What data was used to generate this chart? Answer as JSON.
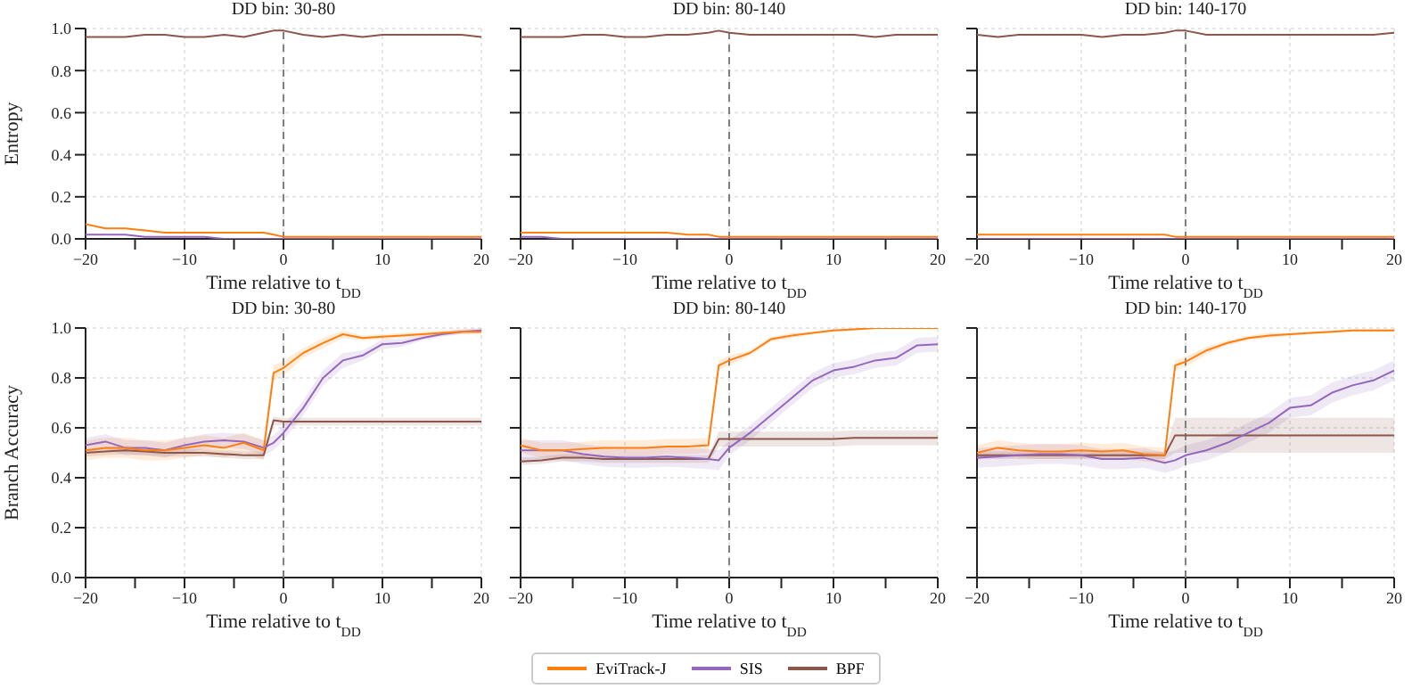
{
  "chart_data": [
    {
      "type": "line",
      "title": "DD bin: 30-80",
      "xlabel": "Time relative to t$_{DD}$",
      "ylabel": "Entropy",
      "legend": "bottom",
      "xlim": [
        -20,
        20
      ],
      "ylim": [
        0,
        1
      ],
      "xticks": [
        -20,
        {
          "value": -15,
          "label": null
        },
        -10,
        {
          "value": -5,
          "label": null
        },
        0,
        {
          "value": 5,
          "label": null
        },
        10,
        {
          "value": 15,
          "label": null
        },
        20
      ],
      "yticks": [
        {
          "value": 0,
          "label": "0.0"
        },
        {
          "value": 0.2,
          "label": "0.2"
        },
        {
          "value": 0.4,
          "label": "0.4"
        },
        {
          "value": 0.6,
          "label": "0.6"
        },
        {
          "value": 0.8,
          "label": "0.8"
        },
        {
          "value": 1,
          "label": "1.0"
        }
      ],
      "grid": true,
      "ref_lines": [
        {
          "axis": "x",
          "value": 0,
          "label": null,
          "color": "#808080",
          "line_style": "dashed"
        }
      ],
      "x": [
        -20,
        -18,
        -16,
        -14,
        -12,
        -10,
        -8,
        -6,
        -4,
        -2,
        -1,
        0,
        2,
        4,
        6,
        8,
        10,
        12,
        14,
        16,
        18,
        20
      ],
      "series": [
        {
          "name": "EviTrack-J",
          "color": "#ff7f0e",
          "values": [
            0.07,
            0.05,
            0.05,
            0.04,
            0.03,
            0.03,
            0.03,
            0.03,
            0.03,
            0.03,
            0.02,
            0.01,
            0.01,
            0.01,
            0.01,
            0.01,
            0.01,
            0.01,
            0.01,
            0.01,
            0.01,
            0.01
          ]
        },
        {
          "name": "SIS",
          "color": "#9467bd",
          "values": [
            0.02,
            0.02,
            0.02,
            0.01,
            0.01,
            0.01,
            0.01,
            0,
            0,
            0,
            0,
            0,
            0,
            0,
            0,
            0,
            0,
            0,
            0,
            0,
            0,
            0
          ]
        },
        {
          "name": "BPF",
          "color": "#8c564b",
          "values": [
            0.96,
            0.96,
            0.96,
            0.97,
            0.97,
            0.96,
            0.96,
            0.97,
            0.96,
            0.98,
            0.99,
            0.99,
            0.97,
            0.96,
            0.97,
            0.96,
            0.97,
            0.97,
            0.97,
            0.97,
            0.97,
            0.96
          ]
        }
      ]
    },
    {
      "type": "line",
      "title": "DD bin: 80-140",
      "xlabel": "Time relative to t$_{DD}$",
      "tick_labels": "x",
      "xlim": [
        -20,
        20
      ],
      "ylim": [
        0,
        1
      ],
      "xticks": [
        -20,
        {
          "value": -15,
          "label": null
        },
        -10,
        {
          "value": -5,
          "label": null
        },
        0,
        {
          "value": 5,
          "label": null
        },
        10,
        {
          "value": 15,
          "label": null
        },
        20
      ],
      "yticks": [
        {
          "value": 0,
          "label": null
        },
        {
          "value": 0.2,
          "label": null
        },
        {
          "value": 0.4,
          "label": null
        },
        {
          "value": 0.6,
          "label": null
        },
        {
          "value": 0.8,
          "label": null
        },
        {
          "value": 1,
          "label": null
        }
      ],
      "grid": true,
      "ref_lines": [
        {
          "axis": "x",
          "value": 0,
          "label": null,
          "color": "#808080",
          "line_style": "dashed"
        }
      ],
      "x": [
        -20,
        -18,
        -16,
        -14,
        -12,
        -10,
        -8,
        -6,
        -4,
        -2,
        -1,
        0,
        2,
        4,
        6,
        8,
        10,
        12,
        14,
        16,
        18,
        20
      ],
      "series": [
        {
          "color": "#ff7f0e",
          "values": [
            0.03,
            0.03,
            0.03,
            0.03,
            0.03,
            0.03,
            0.03,
            0.03,
            0.02,
            0.02,
            0.01,
            0.01,
            0.01,
            0.01,
            0.01,
            0.01,
            0.01,
            0.01,
            0.01,
            0.01,
            0.01,
            0.01
          ]
        },
        {
          "color": "#9467bd",
          "values": [
            0.01,
            0.01,
            0,
            0,
            0,
            0,
            0,
            0,
            0,
            0,
            0,
            0,
            0,
            0,
            0,
            0,
            0,
            0,
            0,
            0,
            0,
            0
          ]
        },
        {
          "color": "#8c564b",
          "values": [
            0.96,
            0.96,
            0.96,
            0.97,
            0.97,
            0.96,
            0.96,
            0.97,
            0.97,
            0.98,
            0.99,
            0.98,
            0.97,
            0.97,
            0.97,
            0.97,
            0.97,
            0.97,
            0.96,
            0.97,
            0.97,
            0.97
          ]
        }
      ]
    },
    {
      "type": "line",
      "title": "DD bin: 140-170",
      "xlabel": "Time relative to t$_{DD}$",
      "tick_labels": "x",
      "xlim": [
        -20,
        20
      ],
      "ylim": [
        0,
        1
      ],
      "xticks": [
        -20,
        {
          "value": -15,
          "label": null
        },
        -10,
        {
          "value": -5,
          "label": null
        },
        0,
        {
          "value": 5,
          "label": null
        },
        10,
        {
          "value": 15,
          "label": null
        },
        20
      ],
      "yticks": [
        {
          "value": 0,
          "label": null
        },
        {
          "value": 0.2,
          "label": null
        },
        {
          "value": 0.4,
          "label": null
        },
        {
          "value": 0.6,
          "label": null
        },
        {
          "value": 0.8,
          "label": null
        },
        {
          "value": 1,
          "label": null
        }
      ],
      "grid": true,
      "ref_lines": [
        {
          "axis": "x",
          "value": 0,
          "label": null,
          "color": "#808080",
          "line_style": "dashed"
        }
      ],
      "x": [
        -20,
        -18,
        -16,
        -14,
        -12,
        -10,
        -8,
        -6,
        -4,
        -2,
        -1,
        0,
        2,
        4,
        6,
        8,
        10,
        12,
        14,
        16,
        18,
        20
      ],
      "series": [
        {
          "color": "#ff7f0e",
          "values": [
            0.02,
            0.02,
            0.02,
            0.02,
            0.02,
            0.02,
            0.02,
            0.02,
            0.02,
            0.02,
            0.01,
            0.01,
            0.01,
            0.01,
            0.01,
            0.01,
            0.01,
            0.01,
            0.01,
            0.01,
            0.01,
            0.01
          ]
        },
        {
          "color": "#9467bd",
          "values": [
            0,
            0,
            0,
            0,
            0,
            0,
            0,
            0,
            0,
            0,
            0,
            0,
            0,
            0,
            0,
            0,
            0,
            0,
            0,
            0,
            0,
            0
          ]
        },
        {
          "color": "#8c564b",
          "values": [
            0.97,
            0.96,
            0.97,
            0.97,
            0.97,
            0.97,
            0.96,
            0.97,
            0.97,
            0.98,
            0.99,
            0.99,
            0.97,
            0.97,
            0.97,
            0.97,
            0.97,
            0.97,
            0.97,
            0.97,
            0.97,
            0.98
          ]
        }
      ]
    },
    {
      "type": "line",
      "title": "DD bin: 30-80",
      "xlabel": "Time relative to t$_{DD}$",
      "ylabel": "Branch Accuracy",
      "xlim": [
        -20,
        20
      ],
      "ylim": [
        0,
        1
      ],
      "xticks": [
        -20,
        {
          "value": -15,
          "label": null
        },
        -10,
        {
          "value": -5,
          "label": null
        },
        0,
        {
          "value": 5,
          "label": null
        },
        10,
        {
          "value": 15,
          "label": null
        },
        20
      ],
      "yticks": [
        {
          "value": 0,
          "label": "0.0"
        },
        {
          "value": 0.2,
          "label": "0.2"
        },
        {
          "value": 0.4,
          "label": "0.4"
        },
        {
          "value": 0.6,
          "label": "0.6"
        },
        {
          "value": 0.8,
          "label": "0.8"
        },
        {
          "value": 1,
          "label": "1.0"
        }
      ],
      "grid": true,
      "ref_lines": [
        {
          "axis": "x",
          "value": 0,
          "label": null,
          "color": "#808080",
          "line_style": "dashed"
        }
      ],
      "x": [
        -20,
        -18,
        -16,
        -14,
        -12,
        -10,
        -8,
        -6,
        -4,
        -2,
        -1,
        0,
        2,
        4,
        6,
        8,
        10,
        12,
        14,
        16,
        18,
        20
      ],
      "series": [
        {
          "color": "#ff7f0e",
          "values": [
            0.51,
            0.52,
            0.52,
            0.51,
            0.51,
            0.52,
            0.53,
            0.52,
            0.54,
            0.51,
            0.82,
            0.84,
            0.9,
            0.94,
            0.975,
            0.96,
            0.965,
            0.97,
            0.975,
            0.98,
            0.985,
            0.985
          ],
          "lower": [
            0.47,
            0.48,
            0.48,
            0.47,
            0.47,
            0.48,
            0.49,
            0.48,
            0.5,
            0.47,
            0.79,
            0.81,
            0.88,
            0.92,
            0.96,
            0.95,
            0.955,
            0.96,
            0.965,
            0.97,
            0.975,
            0.975
          ],
          "upper": [
            0.55,
            0.56,
            0.56,
            0.55,
            0.55,
            0.56,
            0.57,
            0.56,
            0.58,
            0.55,
            0.85,
            0.87,
            0.92,
            0.96,
            0.99,
            0.97,
            0.975,
            0.98,
            0.985,
            0.99,
            0.995,
            0.995
          ]
        },
        {
          "color": "#9467bd",
          "values": [
            0.53,
            0.545,
            0.52,
            0.52,
            0.51,
            0.53,
            0.545,
            0.55,
            0.545,
            0.52,
            0.54,
            0.58,
            0.68,
            0.8,
            0.87,
            0.89,
            0.935,
            0.94,
            0.96,
            0.975,
            0.985,
            0.99
          ],
          "lower": [
            0.5,
            0.515,
            0.49,
            0.49,
            0.48,
            0.5,
            0.515,
            0.52,
            0.515,
            0.49,
            0.51,
            0.55,
            0.65,
            0.77,
            0.84,
            0.87,
            0.915,
            0.925,
            0.95,
            0.965,
            0.975,
            0.98
          ],
          "upper": [
            0.56,
            0.575,
            0.55,
            0.55,
            0.54,
            0.56,
            0.575,
            0.58,
            0.575,
            0.55,
            0.57,
            0.61,
            0.71,
            0.83,
            0.9,
            0.91,
            0.955,
            0.955,
            0.97,
            0.985,
            0.995,
            1.0
          ]
        },
        {
          "color": "#8c564b",
          "values": [
            0.5,
            0.505,
            0.51,
            0.505,
            0.5,
            0.5,
            0.5,
            0.495,
            0.49,
            0.49,
            0.63,
            0.625,
            0.625,
            0.625,
            0.625,
            0.625,
            0.625,
            0.625,
            0.625,
            0.625,
            0.625,
            0.625
          ],
          "lower": [
            0.485,
            0.49,
            0.495,
            0.49,
            0.485,
            0.485,
            0.485,
            0.48,
            0.475,
            0.475,
            0.61,
            0.61,
            0.61,
            0.61,
            0.61,
            0.61,
            0.61,
            0.61,
            0.61,
            0.61,
            0.61,
            0.61
          ],
          "upper": [
            0.515,
            0.52,
            0.525,
            0.52,
            0.515,
            0.515,
            0.515,
            0.51,
            0.505,
            0.505,
            0.645,
            0.64,
            0.64,
            0.64,
            0.64,
            0.64,
            0.64,
            0.64,
            0.64,
            0.64,
            0.64,
            0.64
          ]
        }
      ]
    },
    {
      "type": "line",
      "title": "DD bin: 80-140",
      "xlabel": "Time relative to t$_{DD}$",
      "tick_labels": "x",
      "xlim": [
        -20,
        20
      ],
      "ylim": [
        0,
        1
      ],
      "xticks": [
        -20,
        {
          "value": -15,
          "label": null
        },
        -10,
        {
          "value": -5,
          "label": null
        },
        0,
        {
          "value": 5,
          "label": null
        },
        10,
        {
          "value": 15,
          "label": null
        },
        20
      ],
      "yticks": [
        {
          "value": 0,
          "label": null
        },
        {
          "value": 0.2,
          "label": null
        },
        {
          "value": 0.4,
          "label": null
        },
        {
          "value": 0.6,
          "label": null
        },
        {
          "value": 0.8,
          "label": null
        },
        {
          "value": 1,
          "label": null
        }
      ],
      "grid": true,
      "ref_lines": [
        {
          "axis": "x",
          "value": 0,
          "label": null,
          "color": "#808080",
          "line_style": "dashed"
        }
      ],
      "x": [
        -20,
        -18,
        -16,
        -14,
        -12,
        -10,
        -8,
        -6,
        -4,
        -2,
        -1,
        0,
        2,
        4,
        6,
        8,
        10,
        12,
        14,
        16,
        18,
        20
      ],
      "series": [
        {
          "color": "#ff7f0e",
          "values": [
            0.53,
            0.51,
            0.51,
            0.515,
            0.52,
            0.52,
            0.52,
            0.525,
            0.525,
            0.53,
            0.85,
            0.87,
            0.9,
            0.955,
            0.97,
            0.98,
            0.99,
            0.995,
            1.0,
            1.0,
            1.0,
            1.0
          ],
          "lower": [
            0.5,
            0.48,
            0.48,
            0.485,
            0.49,
            0.49,
            0.49,
            0.495,
            0.495,
            0.5,
            0.83,
            0.85,
            0.89,
            0.945,
            0.96,
            0.975,
            0.985,
            0.99,
            0.995,
            0.995,
            0.995,
            0.995
          ],
          "upper": [
            0.56,
            0.54,
            0.54,
            0.545,
            0.55,
            0.55,
            0.55,
            0.555,
            0.555,
            0.56,
            0.87,
            0.89,
            0.91,
            0.965,
            0.98,
            0.985,
            0.995,
            1.0,
            1.0,
            1.0,
            1.0,
            1.0
          ]
        },
        {
          "color": "#9467bd",
          "values": [
            0.51,
            0.51,
            0.51,
            0.495,
            0.485,
            0.48,
            0.48,
            0.485,
            0.48,
            0.475,
            0.47,
            0.52,
            0.58,
            0.65,
            0.72,
            0.79,
            0.83,
            0.845,
            0.87,
            0.88,
            0.93,
            0.935
          ],
          "lower": [
            0.47,
            0.47,
            0.47,
            0.455,
            0.445,
            0.44,
            0.44,
            0.445,
            0.44,
            0.435,
            0.43,
            0.49,
            0.55,
            0.62,
            0.69,
            0.76,
            0.8,
            0.815,
            0.84,
            0.85,
            0.9,
            0.905
          ],
          "upper": [
            0.55,
            0.55,
            0.55,
            0.535,
            0.525,
            0.52,
            0.52,
            0.525,
            0.52,
            0.515,
            0.51,
            0.55,
            0.61,
            0.68,
            0.75,
            0.82,
            0.86,
            0.875,
            0.9,
            0.91,
            0.96,
            0.965
          ]
        },
        {
          "color": "#8c564b",
          "values": [
            0.465,
            0.47,
            0.48,
            0.48,
            0.475,
            0.475,
            0.475,
            0.475,
            0.475,
            0.475,
            0.555,
            0.555,
            0.555,
            0.555,
            0.555,
            0.555,
            0.555,
            0.56,
            0.56,
            0.56,
            0.56,
            0.56
          ],
          "lower": [
            0.45,
            0.455,
            0.465,
            0.465,
            0.46,
            0.46,
            0.46,
            0.46,
            0.46,
            0.46,
            0.525,
            0.525,
            0.525,
            0.525,
            0.525,
            0.525,
            0.525,
            0.53,
            0.53,
            0.53,
            0.53,
            0.53
          ],
          "upper": [
            0.48,
            0.485,
            0.495,
            0.495,
            0.49,
            0.49,
            0.49,
            0.49,
            0.49,
            0.49,
            0.585,
            0.585,
            0.585,
            0.585,
            0.585,
            0.585,
            0.585,
            0.59,
            0.59,
            0.59,
            0.59,
            0.59
          ]
        }
      ]
    },
    {
      "type": "line",
      "title": "DD bin: 140-170",
      "xlabel": "Time relative to t$_{DD}$",
      "tick_labels": "x",
      "xlim": [
        -20,
        20
      ],
      "ylim": [
        0,
        1
      ],
      "xticks": [
        -20,
        {
          "value": -15,
          "label": null
        },
        -10,
        {
          "value": -5,
          "label": null
        },
        0,
        {
          "value": 5,
          "label": null
        },
        10,
        {
          "value": 15,
          "label": null
        },
        20
      ],
      "yticks": [
        {
          "value": 0,
          "label": null
        },
        {
          "value": 0.2,
          "label": null
        },
        {
          "value": 0.4,
          "label": null
        },
        {
          "value": 0.6,
          "label": null
        },
        {
          "value": 0.8,
          "label": null
        },
        {
          "value": 1,
          "label": null
        }
      ],
      "grid": true,
      "ref_lines": [
        {
          "axis": "x",
          "value": 0,
          "label": null,
          "color": "#808080",
          "line_style": "dashed"
        }
      ],
      "x": [
        -20,
        -18,
        -16,
        -14,
        -12,
        -10,
        -8,
        -6,
        -4,
        -2,
        -1,
        0,
        2,
        4,
        6,
        8,
        10,
        12,
        14,
        16,
        18,
        20
      ],
      "series": [
        {
          "color": "#ff7f0e",
          "values": [
            0.5,
            0.52,
            0.51,
            0.505,
            0.505,
            0.51,
            0.505,
            0.51,
            0.495,
            0.49,
            0.85,
            0.865,
            0.91,
            0.94,
            0.96,
            0.97,
            0.975,
            0.98,
            0.985,
            0.99,
            0.99,
            0.99
          ],
          "lower": [
            0.47,
            0.49,
            0.48,
            0.475,
            0.475,
            0.48,
            0.475,
            0.48,
            0.465,
            0.46,
            0.83,
            0.845,
            0.895,
            0.93,
            0.95,
            0.96,
            0.97,
            0.975,
            0.98,
            0.985,
            0.985,
            0.985
          ],
          "upper": [
            0.53,
            0.55,
            0.54,
            0.535,
            0.535,
            0.54,
            0.535,
            0.54,
            0.525,
            0.52,
            0.87,
            0.885,
            0.925,
            0.95,
            0.97,
            0.98,
            0.98,
            0.985,
            0.99,
            0.995,
            0.995,
            0.995
          ]
        },
        {
          "color": "#9467bd",
          "values": [
            0.48,
            0.485,
            0.49,
            0.495,
            0.495,
            0.49,
            0.475,
            0.475,
            0.48,
            0.46,
            0.47,
            0.49,
            0.51,
            0.54,
            0.58,
            0.62,
            0.68,
            0.69,
            0.74,
            0.77,
            0.79,
            0.83
          ],
          "lower": [
            0.44,
            0.445,
            0.45,
            0.455,
            0.455,
            0.45,
            0.435,
            0.435,
            0.44,
            0.42,
            0.43,
            0.45,
            0.47,
            0.5,
            0.54,
            0.58,
            0.64,
            0.65,
            0.7,
            0.73,
            0.75,
            0.79
          ],
          "upper": [
            0.52,
            0.525,
            0.53,
            0.535,
            0.535,
            0.53,
            0.515,
            0.515,
            0.52,
            0.5,
            0.51,
            0.53,
            0.55,
            0.58,
            0.62,
            0.66,
            0.72,
            0.73,
            0.78,
            0.81,
            0.83,
            0.87
          ]
        },
        {
          "color": "#8c564b",
          "values": [
            0.49,
            0.49,
            0.49,
            0.49,
            0.49,
            0.49,
            0.49,
            0.49,
            0.49,
            0.49,
            0.57,
            0.57,
            0.57,
            0.57,
            0.57,
            0.57,
            0.57,
            0.57,
            0.57,
            0.57,
            0.57,
            0.57
          ],
          "lower": [
            0.475,
            0.475,
            0.475,
            0.475,
            0.475,
            0.475,
            0.475,
            0.475,
            0.475,
            0.475,
            0.5,
            0.5,
            0.5,
            0.5,
            0.5,
            0.5,
            0.5,
            0.5,
            0.5,
            0.5,
            0.5,
            0.5
          ],
          "upper": [
            0.505,
            0.505,
            0.505,
            0.505,
            0.505,
            0.505,
            0.505,
            0.505,
            0.505,
            0.505,
            0.64,
            0.64,
            0.64,
            0.64,
            0.64,
            0.64,
            0.64,
            0.64,
            0.64,
            0.64,
            0.64,
            0.64
          ]
        }
      ]
    }
  ]
}
